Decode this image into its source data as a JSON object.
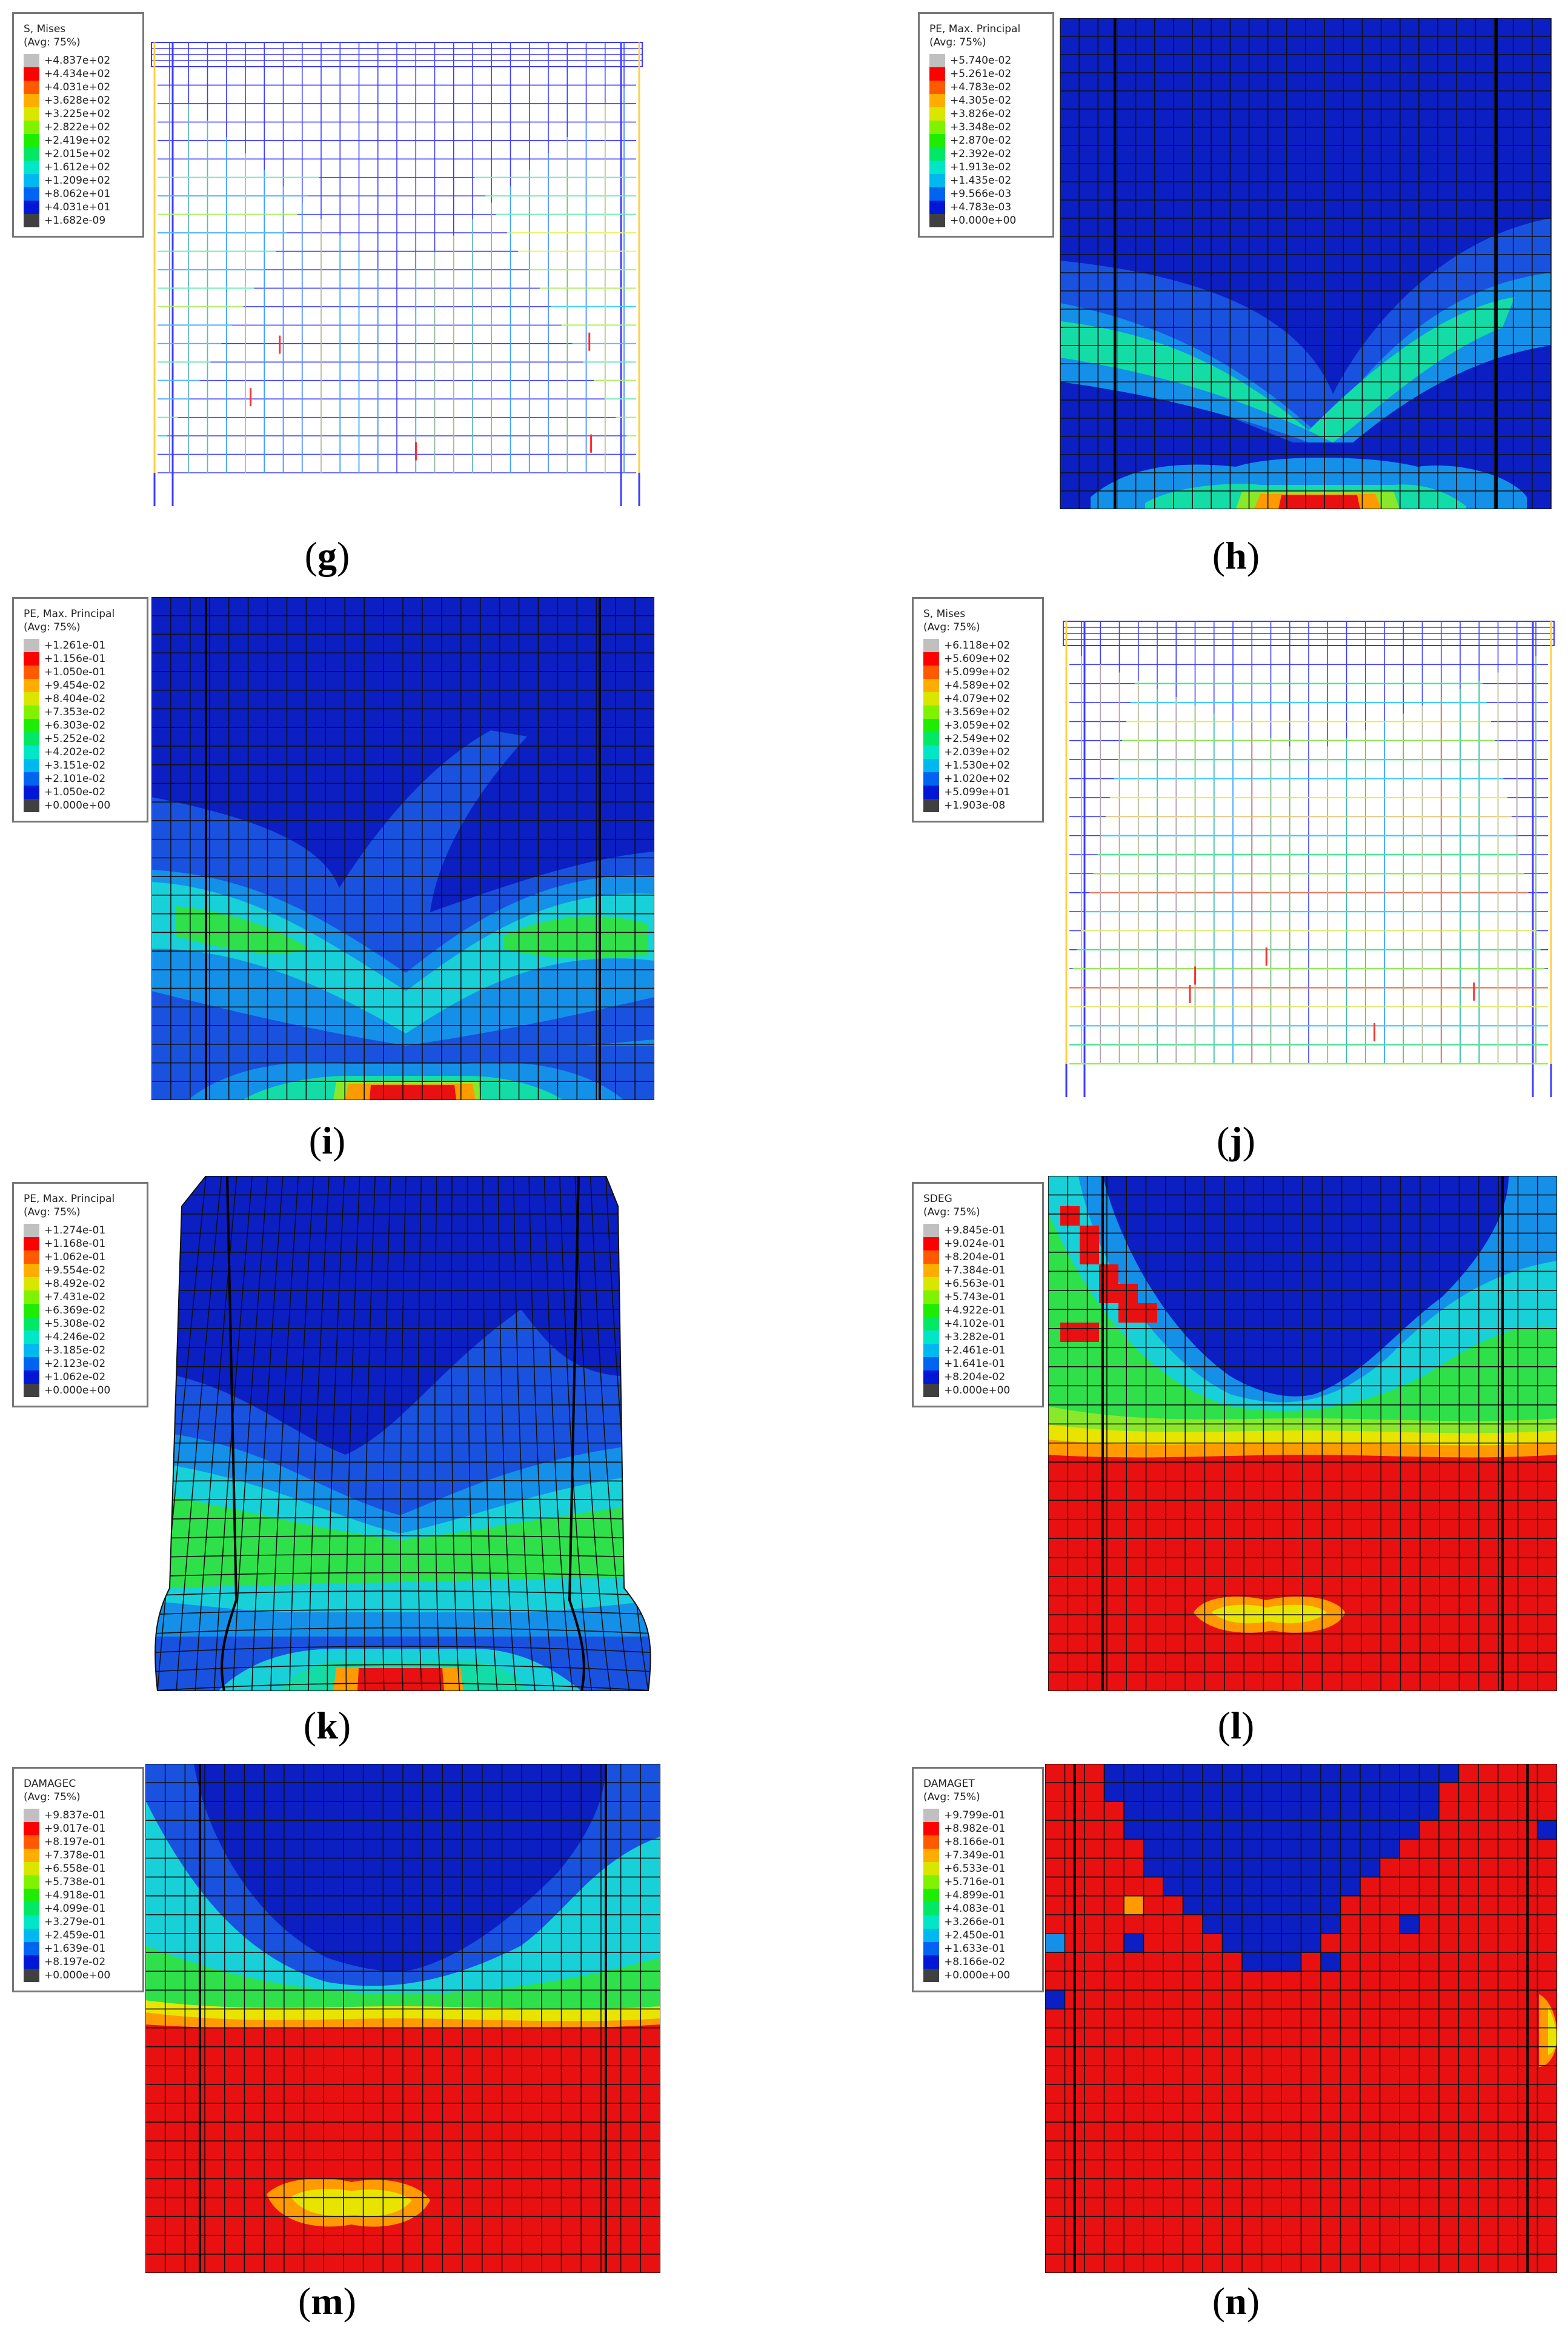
{
  "panels": [
    {
      "id": "g",
      "caption_label": "g",
      "kind": "rebar",
      "legend_title": "S, Mises",
      "legend_sub": "(Avg: 75%)",
      "legend_values": [
        "+4.837e+02",
        "+4.434e+02",
        "+4.031e+02",
        "+3.628e+02",
        "+3.225e+02",
        "+2.822e+02",
        "+2.419e+02",
        "+2.015e+02",
        "+1.612e+02",
        "+1.209e+02",
        "+8.062e+01",
        "+4.031e+01",
        "+1.682e-09"
      ]
    },
    {
      "id": "h",
      "caption_label": "h",
      "kind": "concrete",
      "legend_title": "PE, Max. Principal",
      "legend_sub": "(Avg: 75%)",
      "legend_values": [
        "+5.740e-02",
        "+5.261e-02",
        "+4.783e-02",
        "+4.305e-02",
        "+3.826e-02",
        "+3.348e-02",
        "+2.870e-02",
        "+2.392e-02",
        "+1.913e-02",
        "+1.435e-02",
        "+9.566e-03",
        "+4.783e-03",
        "+0.000e+00"
      ]
    },
    {
      "id": "i",
      "caption_label": "i",
      "kind": "concrete",
      "legend_title": "PE, Max. Principal",
      "legend_sub": "(Avg: 75%)",
      "legend_values": [
        "+1.261e-01",
        "+1.156e-01",
        "+1.050e-01",
        "+9.454e-02",
        "+8.404e-02",
        "+7.353e-02",
        "+6.303e-02",
        "+5.252e-02",
        "+4.202e-02",
        "+3.151e-02",
        "+2.101e-02",
        "+1.050e-02",
        "+0.000e+00"
      ]
    },
    {
      "id": "j",
      "caption_label": "j",
      "kind": "rebar",
      "legend_title": "S, Mises",
      "legend_sub": "(Avg: 75%)",
      "legend_values": [
        "+6.118e+02",
        "+5.609e+02",
        "+5.099e+02",
        "+4.589e+02",
        "+4.079e+02",
        "+3.569e+02",
        "+3.059e+02",
        "+2.549e+02",
        "+2.039e+02",
        "+1.530e+02",
        "+1.020e+02",
        "+5.099e+01",
        "+1.903e-08"
      ]
    },
    {
      "id": "k",
      "caption_label": "k",
      "kind": "concrete",
      "legend_title": "PE, Max. Principal",
      "legend_sub": "(Avg: 75%)",
      "legend_values": [
        "+1.274e-01",
        "+1.168e-01",
        "+1.062e-01",
        "+9.554e-02",
        "+8.492e-02",
        "+7.431e-02",
        "+6.369e-02",
        "+5.308e-02",
        "+4.246e-02",
        "+3.185e-02",
        "+2.123e-02",
        "+1.062e-02",
        "+0.000e+00"
      ]
    },
    {
      "id": "l",
      "caption_label": "l",
      "kind": "damage",
      "legend_title": "SDEG",
      "legend_sub": "(Avg: 75%)",
      "legend_values": [
        "+9.845e-01",
        "+9.024e-01",
        "+8.204e-01",
        "+7.384e-01",
        "+6.563e-01",
        "+5.743e-01",
        "+4.922e-01",
        "+4.102e-01",
        "+3.282e-01",
        "+2.461e-01",
        "+1.641e-01",
        "+8.204e-02",
        "+0.000e+00"
      ]
    },
    {
      "id": "m",
      "caption_label": "m",
      "kind": "damage",
      "legend_title": "DAMAGEC",
      "legend_sub": "(Avg: 75%)",
      "legend_values": [
        "+9.837e-01",
        "+9.017e-01",
        "+8.197e-01",
        "+7.378e-01",
        "+6.558e-01",
        "+5.738e-01",
        "+4.918e-01",
        "+4.099e-01",
        "+3.279e-01",
        "+2.459e-01",
        "+1.639e-01",
        "+8.197e-02",
        "+0.000e+00"
      ]
    },
    {
      "id": "n",
      "caption_label": "n",
      "kind": "tension",
      "legend_title": "DAMAGET",
      "legend_sub": "(Avg: 75%)",
      "legend_values": [
        "+9.799e-01",
        "+8.982e-01",
        "+8.166e-01",
        "+7.349e-01",
        "+6.533e-01",
        "+5.716e-01",
        "+4.899e-01",
        "+4.083e-01",
        "+3.266e-01",
        "+2.450e-01",
        "+1.633e-01",
        "+8.166e-02",
        "+0.000e+00"
      ]
    }
  ],
  "colors": {
    "scale": [
      "#c0c0c0",
      "#ff0000",
      "#ff5a00",
      "#ffad00",
      "#d8e600",
      "#7ff200",
      "#1eec00",
      "#00e864",
      "#00e6c6",
      "#00b8f0",
      "#0064f0",
      "#0018d6",
      "#404040"
    ],
    "concrete_base": "#0c1fc2",
    "mesh_line": "#1a1a1a",
    "rebar_line": "#3d3dff"
  }
}
